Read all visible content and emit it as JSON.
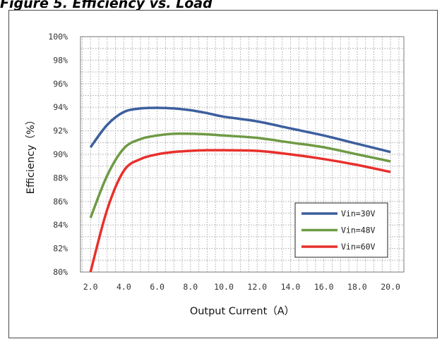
{
  "caption": "Figure 5.  Efficiency vs. Load",
  "chart_data": {
    "type": "line",
    "xlabel": "Output Current（A）",
    "ylabel": "Efficiency（%）",
    "xlim": [
      1.4,
      20.8
    ],
    "ylim": [
      80,
      100
    ],
    "x_ticks": [
      2,
      4,
      6,
      8,
      10,
      12,
      14,
      16,
      18,
      20
    ],
    "x_tick_labels": [
      "2.0",
      "4.0",
      "6.0",
      "8.0",
      "10.0",
      "12.0",
      "14.0",
      "16.0",
      "18.0",
      "20.0"
    ],
    "y_ticks": [
      80,
      82,
      84,
      86,
      88,
      90,
      92,
      94,
      96,
      98,
      100
    ],
    "y_tick_labels": [
      "80%",
      "82%",
      "84%",
      "86%",
      "88%",
      "90%",
      "92%",
      "94%",
      "96%",
      "98%",
      "100%"
    ],
    "grid": true,
    "legend_position": "bottom-right",
    "series": [
      {
        "name": "Vin=30V",
        "color": "#3c5f9e",
        "x": [
          2,
          3,
          4,
          5,
          6,
          7,
          8,
          9,
          10,
          12,
          14,
          16,
          18,
          20
        ],
        "y": [
          90.6,
          92.5,
          93.6,
          93.9,
          93.95,
          93.9,
          93.75,
          93.5,
          93.2,
          92.8,
          92.2,
          91.6,
          90.9,
          90.2
        ]
      },
      {
        "name": "Vin=48V",
        "color": "#6e9a44",
        "x": [
          2,
          3,
          4,
          5,
          6,
          7,
          8,
          9,
          10,
          12,
          14,
          16,
          18,
          20
        ],
        "y": [
          84.6,
          88.2,
          90.5,
          91.3,
          91.6,
          91.75,
          91.75,
          91.7,
          91.6,
          91.4,
          91.0,
          90.6,
          90.0,
          89.4
        ]
      },
      {
        "name": "Vin=60V",
        "color": "#e8302c",
        "x": [
          2,
          3,
          4,
          5,
          6,
          7,
          8,
          9,
          10,
          12,
          14,
          16,
          18,
          20
        ],
        "y": [
          80.0,
          85.3,
          88.6,
          89.6,
          90.0,
          90.2,
          90.3,
          90.35,
          90.35,
          90.3,
          90.0,
          89.6,
          89.1,
          88.5
        ]
      }
    ]
  }
}
